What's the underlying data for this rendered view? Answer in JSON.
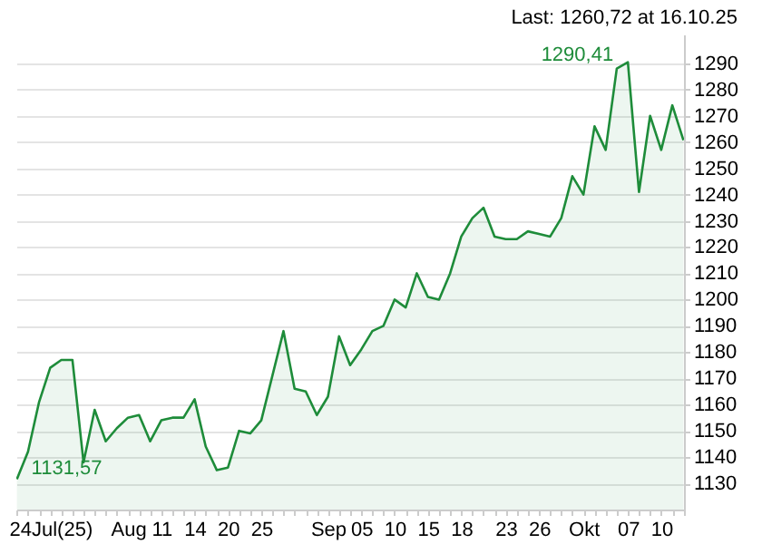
{
  "chart_data": {
    "type": "area",
    "categories": [
      null,
      null,
      null,
      "24Jul(25)",
      null,
      null,
      null,
      null,
      null,
      null,
      "Aug",
      null,
      null,
      "11",
      null,
      null,
      "14",
      null,
      null,
      "20",
      null,
      null,
      "25",
      null,
      null,
      null,
      null,
      null,
      "Sep",
      null,
      null,
      "05",
      null,
      null,
      "10",
      null,
      null,
      "15",
      null,
      null,
      "18",
      null,
      null,
      null,
      "23",
      null,
      null,
      "26",
      null,
      null,
      null,
      "Okt",
      null,
      null,
      null,
      "07",
      null,
      null,
      "10",
      null,
      null
    ],
    "series": [
      {
        "color": "#1e8c3a",
        "values": [
          1131.57,
          1142,
          1161,
          1174,
          1177,
          1177,
          1138,
          1158,
          1146,
          1151,
          1155,
          1156,
          1146,
          1154,
          1155,
          1155,
          1162,
          1144,
          1135,
          1136,
          1150,
          1149,
          1154,
          1171,
          1188,
          1166,
          1165,
          1156,
          1163,
          1186,
          1175,
          1181,
          1188,
          1190,
          1200,
          1197,
          1210,
          1201,
          1200,
          1210,
          1224,
          1231,
          1235,
          1224,
          1223,
          1223,
          1226,
          1225,
          1224,
          1231,
          1247,
          1240,
          1266,
          1257,
          1288,
          1290.41,
          1241,
          1270,
          1257,
          1274,
          1260.72
        ]
      }
    ],
    "ylim": [
      1120,
      1301
    ],
    "yticks": [
      1130,
      1140,
      1150,
      1160,
      1170,
      1180,
      1190,
      1200,
      1210,
      1220,
      1230,
      1240,
      1250,
      1260,
      1270,
      1280,
      1290
    ],
    "grid": "y",
    "annotations": [
      "Last: 1260,72 at 16.10.25",
      "1290,41",
      "1131,57"
    ]
  }
}
